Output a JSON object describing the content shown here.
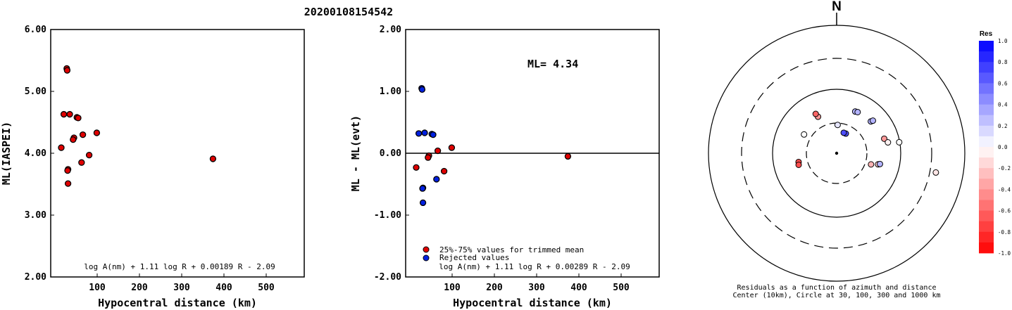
{
  "title": "20200108154542",
  "chart_data": [
    {
      "type": "scatter",
      "panel": "left",
      "xlabel": "Hypocentral distance (km)",
      "ylabel": "ML(IASPEI)",
      "xlim": [
        -10,
        590
      ],
      "ylim": [
        2.0,
        6.0
      ],
      "xticks": [
        100,
        200,
        300,
        400,
        500
      ],
      "yticks": [
        2.0,
        3.0,
        4.0,
        5.0,
        6.0
      ],
      "yticklabels": [
        "2.00",
        "3.00",
        "4.00",
        "5.00",
        "6.00"
      ],
      "formula": "log A(nm) + 1.11 log R + 0.00189 R - 2.09",
      "marker_color": "#e00000",
      "points": [
        {
          "x": 28,
          "y": 5.37
        },
        {
          "x": 29,
          "y": 5.34
        },
        {
          "x": 21,
          "y": 4.63
        },
        {
          "x": 35,
          "y": 4.63
        },
        {
          "x": 52,
          "y": 4.58
        },
        {
          "x": 55,
          "y": 4.57
        },
        {
          "x": 66,
          "y": 4.3
        },
        {
          "x": 99,
          "y": 4.33
        },
        {
          "x": 45,
          "y": 4.25
        },
        {
          "x": 43,
          "y": 4.22
        },
        {
          "x": 15,
          "y": 4.09
        },
        {
          "x": 81,
          "y": 3.97
        },
        {
          "x": 63,
          "y": 3.85
        },
        {
          "x": 31,
          "y": 3.74
        },
        {
          "x": 30,
          "y": 3.72
        },
        {
          "x": 31,
          "y": 3.51
        },
        {
          "x": 374,
          "y": 3.91
        }
      ]
    },
    {
      "type": "scatter",
      "panel": "middle",
      "xlabel": "Hypocentral distance (km)",
      "ylabel": "ML - ML(evt)",
      "xlim": [
        -10,
        590
      ],
      "ylim": [
        -2.0,
        2.0
      ],
      "xticks": [
        100,
        200,
        300,
        400,
        500
      ],
      "yticks": [
        -2.0,
        -1.0,
        0.0,
        1.0,
        2.0
      ],
      "yticklabels": [
        "-2.00",
        "-1.00",
        "0.00",
        "1.00",
        "2.00"
      ],
      "annotation": "ML= 4.34",
      "formula": "log A(nm) + 1.11 log R + 0.00289 R - 2.09",
      "legend": [
        {
          "label": "25%-75% values for trimmed mean",
          "color": "#e00000"
        },
        {
          "label": "Rejected values",
          "color": "#0020e0"
        }
      ],
      "series": [
        {
          "name": "25%-75% values for trimmed mean",
          "color": "#e00000",
          "points": [
            {
              "x": 15,
              "y": -0.23
            },
            {
              "x": 45,
              "y": -0.04
            },
            {
              "x": 43,
              "y": -0.07
            },
            {
              "x": 66,
              "y": 0.04
            },
            {
              "x": 99,
              "y": 0.09
            },
            {
              "x": 81,
              "y": -0.29
            },
            {
              "x": 374,
              "y": -0.05
            }
          ]
        },
        {
          "name": "Rejected values",
          "color": "#0020e0",
          "points": [
            {
              "x": 28,
              "y": 1.05
            },
            {
              "x": 29,
              "y": 1.03
            },
            {
              "x": 21,
              "y": 0.32
            },
            {
              "x": 35,
              "y": 0.33
            },
            {
              "x": 52,
              "y": 0.31
            },
            {
              "x": 55,
              "y": 0.3
            },
            {
              "x": 63,
              "y": -0.42
            },
            {
              "x": 31,
              "y": -0.56
            },
            {
              "x": 30,
              "y": -0.57
            },
            {
              "x": 31,
              "y": -0.8
            }
          ]
        }
      ]
    },
    {
      "type": "scatter",
      "panel": "polar",
      "north_label": "N",
      "caption_line1": "Residuals as a function of azimuth and distance",
      "caption_line2": "Center (10km), Circle at 30, 100, 300 and 1000 km",
      "circles_km": [
        30,
        100,
        300,
        1000
      ],
      "colorbar": {
        "title": "Res",
        "min": -1.0,
        "max": 1.0,
        "ticks": [
          1.0,
          0.8,
          0.6,
          0.4,
          0.2,
          0.0,
          -0.2,
          -0.4,
          -0.6,
          -0.8,
          -1.0
        ],
        "ticklabels": [
          "1.0",
          "0.8",
          "0.6",
          "0.4",
          "0.2",
          "0.0",
          "-0.2",
          "-0.4",
          "-0.6",
          "-0.8",
          "-1.0"
        ],
        "neg_color": "#ff0000",
        "pos_color": "#0000ff"
      },
      "points": [
        {
          "az": 333,
          "dist": 44,
          "res": -0.4
        },
        {
          "az": 332,
          "dist": 50,
          "res": -0.6
        },
        {
          "az": 300,
          "dist": 39,
          "res": 0.0
        },
        {
          "az": 257,
          "dist": 41,
          "res": -0.7
        },
        {
          "az": 253,
          "dist": 42,
          "res": -0.7
        },
        {
          "az": 2,
          "dist": 28,
          "res": 0.1
        },
        {
          "az": 25,
          "dist": 22,
          "res": 0.7
        },
        {
          "az": 19,
          "dist": 22,
          "res": 0.7
        },
        {
          "az": 24,
          "dist": 52,
          "res": 0.3
        },
        {
          "az": 27,
          "dist": 53,
          "res": 0.3
        },
        {
          "az": 47,
          "dist": 54,
          "res": 0.3
        },
        {
          "az": 48,
          "dist": 58,
          "res": 0.3
        },
        {
          "az": 73,
          "dist": 60,
          "res": -0.4
        },
        {
          "az": 78,
          "dist": 66,
          "res": -0.05
        },
        {
          "az": 80,
          "dist": 98,
          "res": 0.0
        },
        {
          "az": 105,
          "dist": 47,
          "res": -0.2
        },
        {
          "az": 104,
          "dist": 50,
          "res": 0.3
        },
        {
          "az": 108,
          "dist": 37,
          "res": -0.3
        },
        {
          "az": 101,
          "dist": 373,
          "res": -0.1
        }
      ]
    }
  ]
}
